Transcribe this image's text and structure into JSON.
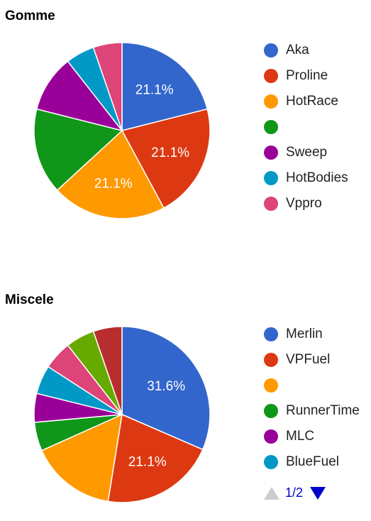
{
  "chart_data": [
    {
      "type": "pie",
      "title": "Gomme",
      "slices": [
        {
          "label": "Aka",
          "value": 21.1,
          "color": "#3366cc",
          "data_label": "21.1%"
        },
        {
          "label": "Proline",
          "value": 21.1,
          "color": "#dc3912",
          "data_label": "21.1%"
        },
        {
          "label": "HotRace",
          "value": 21.1,
          "color": "#ff9900",
          "data_label": "21.1%"
        },
        {
          "label": "",
          "value": 15.8,
          "color": "#109618",
          "data_label": ""
        },
        {
          "label": "Sweep",
          "value": 10.5,
          "color": "#990099",
          "data_label": ""
        },
        {
          "label": "HotBodies",
          "value": 5.3,
          "color": "#0099c6",
          "data_label": ""
        },
        {
          "label": "Vppro",
          "value": 5.3,
          "color": "#dd4477",
          "data_label": ""
        }
      ],
      "legend_position": "right"
    },
    {
      "type": "pie",
      "title": "Miscele",
      "slices": [
        {
          "label": "Merlin",
          "value": 31.6,
          "color": "#3366cc",
          "data_label": "31.6%"
        },
        {
          "label": "VPFuel",
          "value": 21.1,
          "color": "#dc3912",
          "data_label": "21.1%"
        },
        {
          "label": "",
          "value": 15.8,
          "color": "#ff9900",
          "data_label": ""
        },
        {
          "label": "RunnerTime",
          "value": 5.3,
          "color": "#109618",
          "data_label": ""
        },
        {
          "label": "MLC",
          "value": 5.3,
          "color": "#990099",
          "data_label": ""
        },
        {
          "label": "BlueFuel",
          "value": 5.3,
          "color": "#0099c6",
          "data_label": ""
        },
        {
          "label": "",
          "value": 5.3,
          "color": "#dd4477",
          "data_label": ""
        },
        {
          "label": "",
          "value": 5.3,
          "color": "#66aa00",
          "data_label": ""
        },
        {
          "label": "",
          "value": 5.3,
          "color": "#b82e2e",
          "data_label": ""
        }
      ],
      "legend_position": "right",
      "legend_visible_count": 6,
      "legend_pager": {
        "text": "1/2"
      }
    }
  ]
}
